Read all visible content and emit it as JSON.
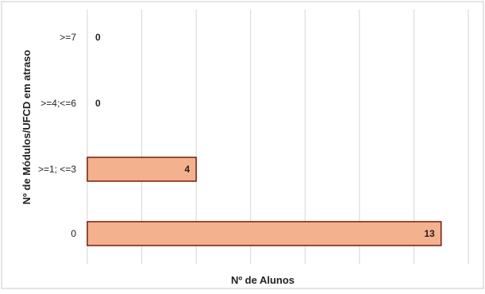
{
  "chart_data": {
    "type": "bar",
    "orientation": "horizontal",
    "categories": [
      ">=7",
      ">=4;<=6",
      ">=1; <=3",
      "0"
    ],
    "values": [
      0,
      0,
      4,
      13
    ],
    "value_labels": [
      "0",
      "0",
      "4",
      "13"
    ],
    "xlabel": "Nº de Alunos",
    "ylabel": "Nº de Módulos/UFCD em atraso",
    "xlim": [
      0,
      14
    ],
    "grid": true,
    "legend": "none",
    "colors": {
      "bar_fill": "#F4B18E",
      "bar_stroke": "#7A1A0C",
      "gridline": "#D6D6D6",
      "frame": "#C8C8C8"
    }
  }
}
